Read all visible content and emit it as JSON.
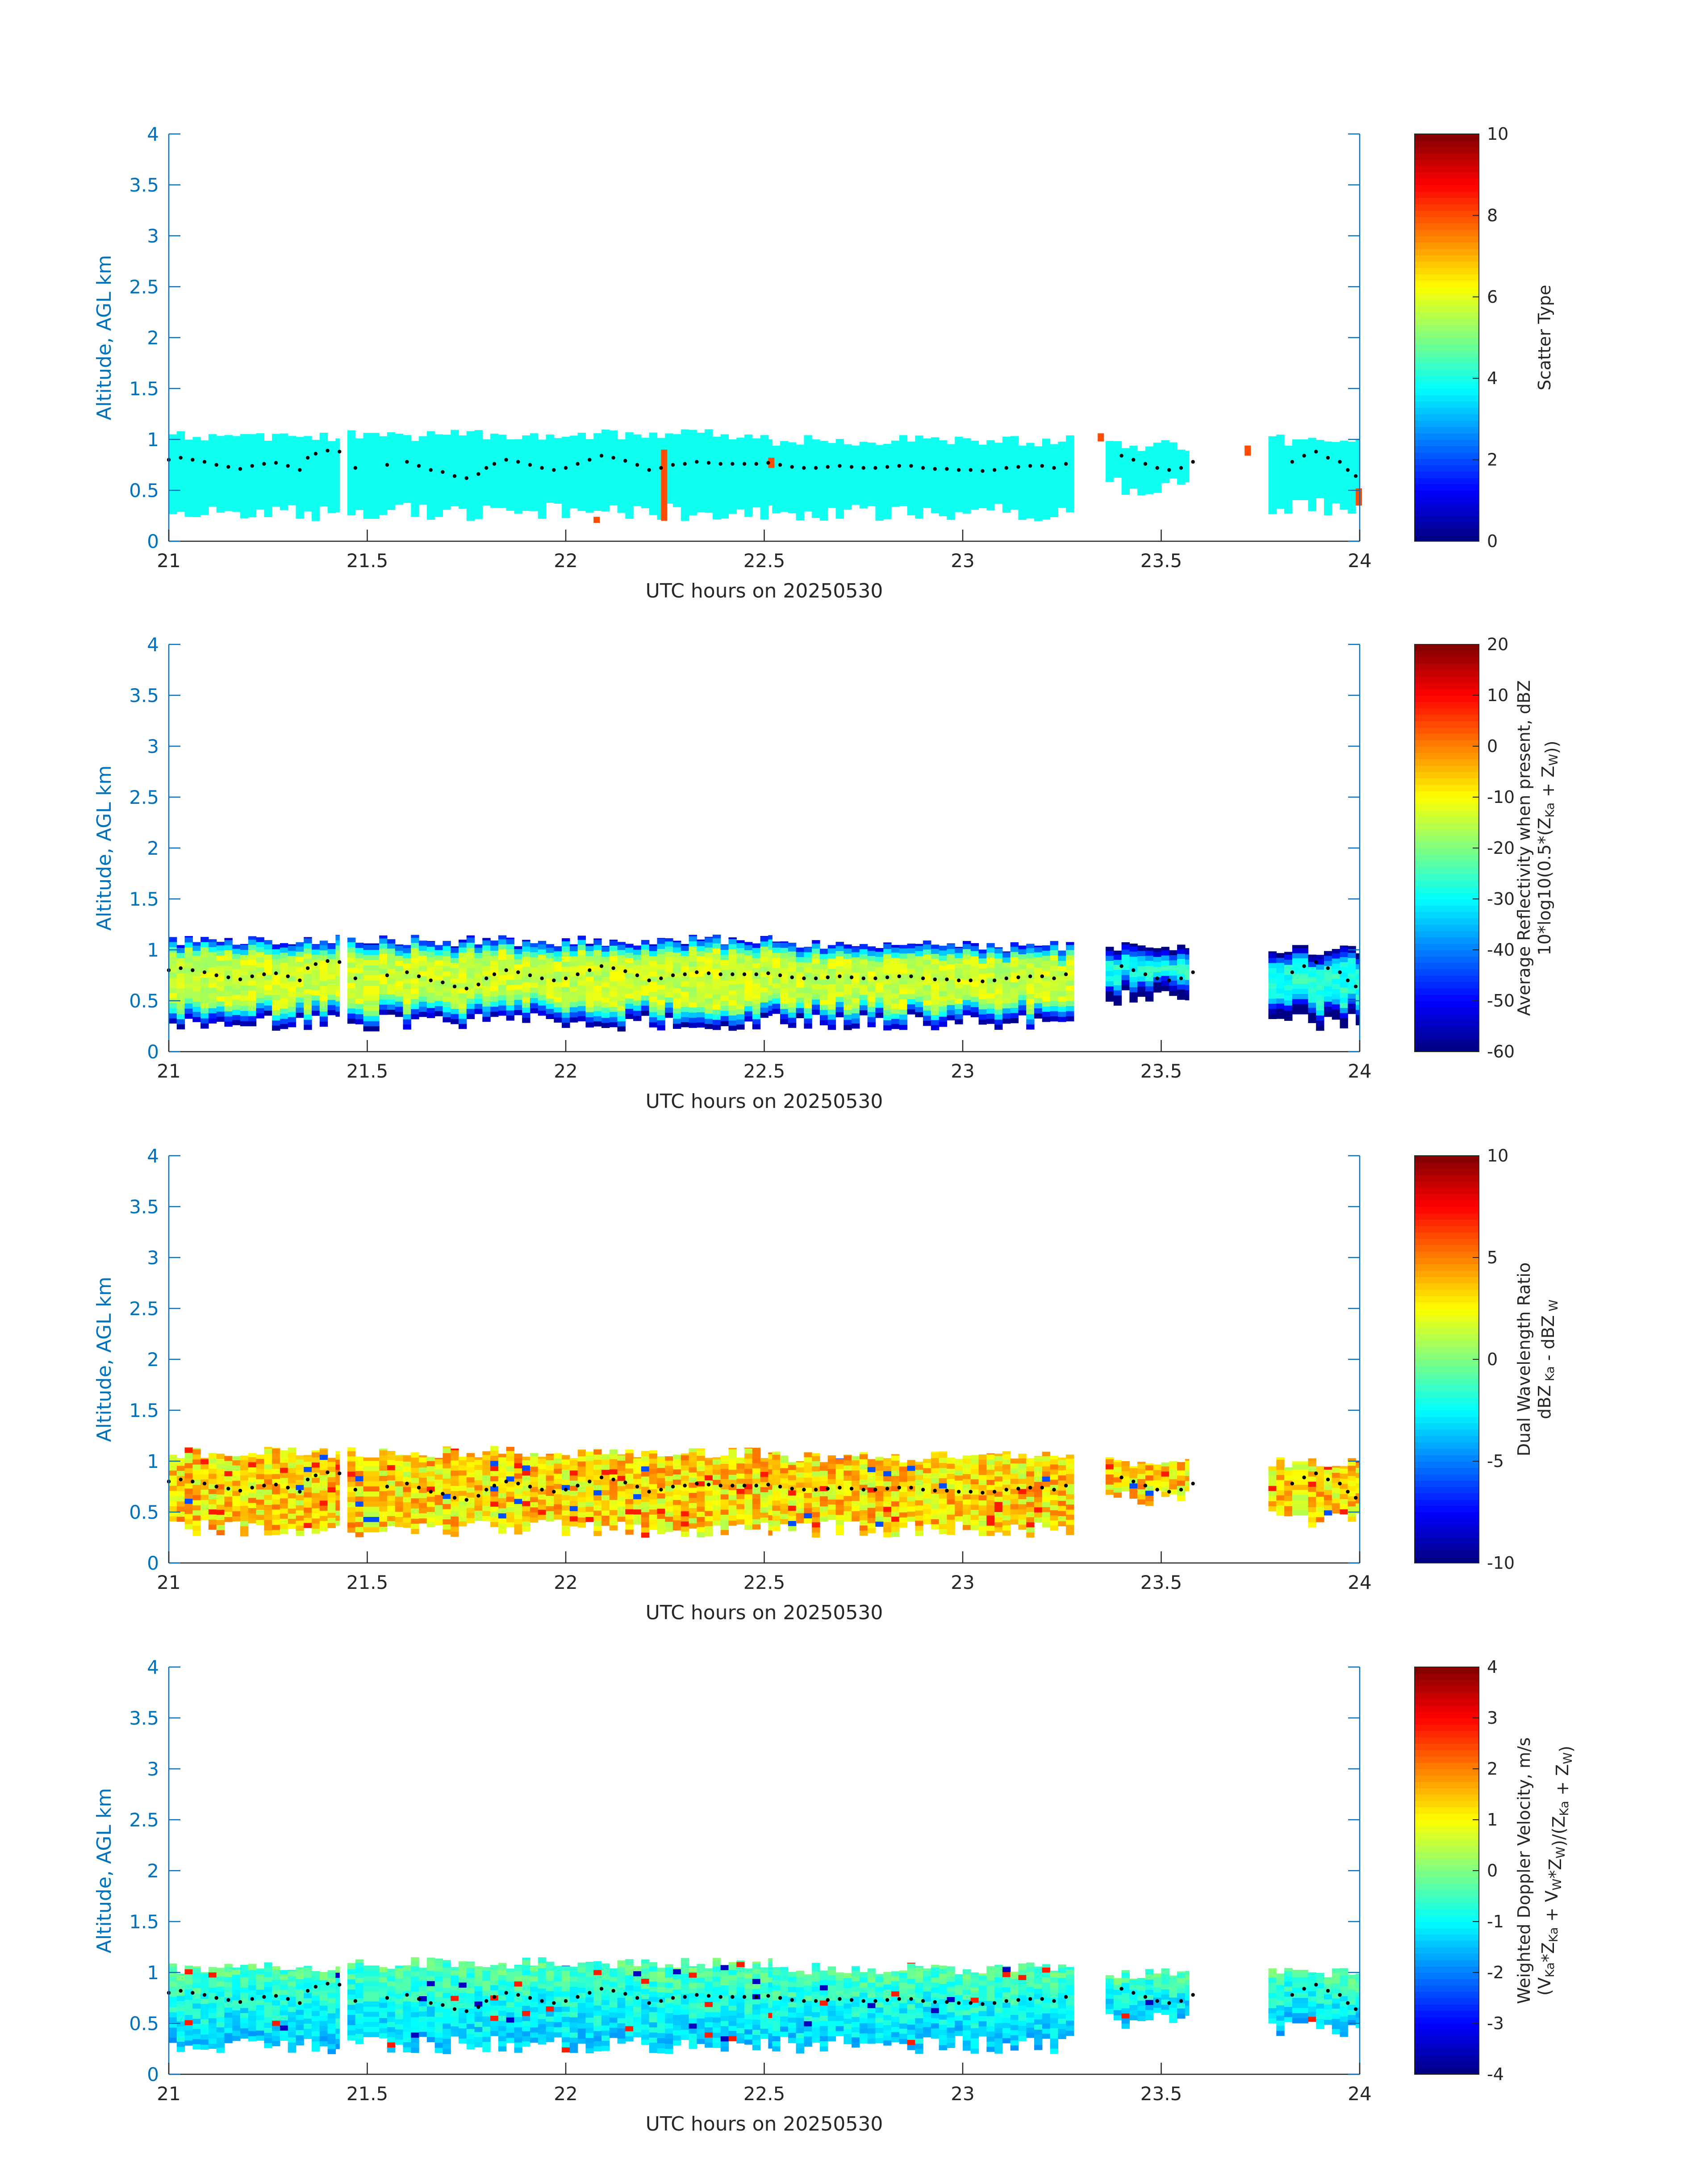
{
  "figure": {
    "colormap": "jet",
    "axis_color": "#0072BD",
    "background": "#ffffff",
    "marker_color": "#000000",
    "data_field_note": ""
  },
  "chart_data": [
    {
      "type": "heatmap",
      "panel": "scatter-type",
      "xlabel": "UTC hours on 20250530",
      "ylabel": "Altitude, AGL km",
      "xlim": [
        21,
        24
      ],
      "ylim": [
        0,
        4
      ],
      "xticks": [
        "21",
        "21.5",
        "22",
        "22.5",
        "23",
        "23.5",
        "24"
      ],
      "yticks": [
        "0",
        "0.5",
        "1",
        "1.5",
        "2",
        "2.5",
        "3",
        "3.5",
        "4"
      ],
      "grid": false,
      "colorbar": {
        "label_lines": [
          [
            {
              "t": "Scatter Type"
            }
          ]
        ],
        "clim": [
          0,
          10
        ],
        "ticks": [
          "0",
          "2",
          "4",
          "6",
          "8",
          "10"
        ]
      },
      "layer_segments": [
        {
          "t0": 21.0,
          "t1": 21.43,
          "bottom": 0.2,
          "top": 1.1
        },
        {
          "t0": 21.45,
          "t1": 22.52,
          "bottom": 0.2,
          "top": 1.1
        },
        {
          "t0": 22.52,
          "t1": 23.28,
          "bottom": 0.2,
          "top": 1.05
        },
        {
          "t0": 23.36,
          "t1": 23.57,
          "bottom": 0.45,
          "top": 1.0
        },
        {
          "t0": 23.77,
          "t1": 24.0,
          "bottom": 0.25,
          "top": 1.05
        }
      ],
      "dominant_value": 3.9,
      "anomalies": [
        {
          "t": 22.24,
          "z0": 0.2,
          "z1": 0.9,
          "value": 8.0
        },
        {
          "t": 22.51,
          "z0": 0.72,
          "z1": 0.82,
          "value": 8.0
        },
        {
          "t": 22.07,
          "z0": 0.18,
          "z1": 0.24,
          "value": 8.0
        },
        {
          "t": 23.34,
          "z0": 0.98,
          "z1": 1.06,
          "value": 8.0
        },
        {
          "t": 23.71,
          "z0": 0.84,
          "z1": 0.94,
          "value": 8.0
        },
        {
          "t": 23.99,
          "z0": 0.35,
          "z1": 0.52,
          "value": 8.0
        }
      ]
    },
    {
      "type": "heatmap",
      "panel": "average-reflectivity",
      "xlabel": "UTC hours on 20250530",
      "ylabel": "Altitude, AGL km",
      "xlim": [
        21,
        24
      ],
      "ylim": [
        0,
        4
      ],
      "xticks": [
        "21",
        "21.5",
        "22",
        "22.5",
        "23",
        "23.5",
        "24"
      ],
      "yticks": [
        "0",
        "0.5",
        "1",
        "1.5",
        "2",
        "2.5",
        "3",
        "3.5",
        "4"
      ],
      "grid": false,
      "colorbar": {
        "label_lines": [
          [
            {
              "t": "Average Reflectivity when present, dBZ"
            }
          ],
          [
            {
              "t": "10*log10(0.5*(Z"
            },
            {
              "t": "Ka",
              "sub": true
            },
            {
              "t": " + Z"
            },
            {
              "t": "W",
              "sub": true
            },
            {
              "t": "))"
            }
          ]
        ],
        "clim": [
          -60,
          20
        ],
        "ticks": [
          "-60",
          "-50",
          "-40",
          "-30",
          "-20",
          "-10",
          "0",
          "10",
          "20"
        ]
      },
      "layer_segments": [
        {
          "t0": 21.0,
          "t1": 21.43,
          "bottom": 0.2,
          "top": 1.15
        },
        {
          "t0": 21.45,
          "t1": 22.52,
          "bottom": 0.2,
          "top": 1.15
        },
        {
          "t0": 22.52,
          "t1": 23.28,
          "bottom": 0.2,
          "top": 1.1
        },
        {
          "t0": 23.36,
          "t1": 23.57,
          "bottom": 0.45,
          "top": 1.1
        },
        {
          "t0": 23.77,
          "t1": 24.0,
          "bottom": 0.2,
          "top": 1.05
        }
      ],
      "core_value": -14,
      "edge_value": -55,
      "noise": 8
    },
    {
      "type": "heatmap",
      "panel": "dual-wavelength-ratio",
      "xlabel": "UTC hours on 20250530",
      "ylabel": "Altitude, AGL km",
      "xlim": [
        21,
        24
      ],
      "ylim": [
        0,
        4
      ],
      "xticks": [
        "21",
        "21.5",
        "22",
        "22.5",
        "23",
        "23.5",
        "24"
      ],
      "yticks": [
        "0",
        "0.5",
        "1",
        "1.5",
        "2",
        "2.5",
        "3",
        "3.5",
        "4"
      ],
      "grid": false,
      "colorbar": {
        "label_lines": [
          [
            {
              "t": "Dual Wavelength Ratio"
            }
          ],
          [
            {
              "t": "dBZ"
            },
            {
              "t": " Ka",
              "sub": true
            },
            {
              "t": " - dBZ"
            },
            {
              "t": " W",
              "sub": true
            }
          ]
        ],
        "clim": [
          -10,
          10
        ],
        "ticks": [
          "-10",
          "-5",
          "0",
          "5",
          "10"
        ]
      },
      "layer_segments": [
        {
          "t0": 21.0,
          "t1": 21.43,
          "bottom": 0.25,
          "top": 1.15
        },
        {
          "t0": 21.45,
          "t1": 22.52,
          "bottom": 0.25,
          "top": 1.15
        },
        {
          "t0": 22.52,
          "t1": 23.28,
          "bottom": 0.25,
          "top": 1.1
        },
        {
          "t0": 23.36,
          "t1": 23.57,
          "bottom": 0.55,
          "top": 1.05
        },
        {
          "t0": 23.77,
          "t1": 24.0,
          "bottom": 0.35,
          "top": 1.05
        }
      ],
      "core_value": 3.2,
      "noise": 2.2
    },
    {
      "type": "heatmap",
      "panel": "weighted-doppler-velocity",
      "xlabel": "UTC hours on 20250530",
      "ylabel": "Altitude, AGL km",
      "xlim": [
        21,
        24
      ],
      "ylim": [
        0,
        4
      ],
      "xticks": [
        "21",
        "21.5",
        "22",
        "22.5",
        "23",
        "23.5",
        "24"
      ],
      "yticks": [
        "0",
        "0.5",
        "1",
        "1.5",
        "2",
        "2.5",
        "3",
        "3.5",
        "4"
      ],
      "grid": false,
      "colorbar": {
        "label_lines": [
          [
            {
              "t": "Weighted Doppler Velocity, m/s"
            }
          ],
          [
            {
              "t": "(V"
            },
            {
              "t": "Ka",
              "sub": true
            },
            {
              "t": "*Z"
            },
            {
              "t": "Ka",
              "sub": true
            },
            {
              "t": " + V"
            },
            {
              "t": "W",
              "sub": true
            },
            {
              "t": "*Z"
            },
            {
              "t": "W",
              "sub": true
            },
            {
              "t": ")/(Z"
            },
            {
              "t": "Ka",
              "sub": true
            },
            {
              "t": " + Z"
            },
            {
              "t": "W",
              "sub": true
            },
            {
              "t": ")"
            }
          ]
        ],
        "clim": [
          -4,
          4
        ],
        "ticks": [
          "-4",
          "-3",
          "-2",
          "-1",
          "0",
          "1",
          "2",
          "3",
          "4"
        ]
      },
      "layer_segments": [
        {
          "t0": 21.0,
          "t1": 21.43,
          "bottom": 0.2,
          "top": 1.1
        },
        {
          "t0": 21.45,
          "t1": 22.52,
          "bottom": 0.2,
          "top": 1.15
        },
        {
          "t0": 22.52,
          "t1": 23.28,
          "bottom": 0.2,
          "top": 1.1
        },
        {
          "t0": 23.36,
          "t1": 23.57,
          "bottom": 0.45,
          "top": 1.05
        },
        {
          "t0": 23.77,
          "t1": 24.0,
          "bottom": 0.35,
          "top": 1.05
        }
      ],
      "lower_value": -1.4,
      "upper_value": -0.3,
      "noise": 0.5
    }
  ],
  "marker_trace": {
    "style": "black dots",
    "points": [
      [
        21.0,
        0.8
      ],
      [
        21.03,
        0.82
      ],
      [
        21.06,
        0.8
      ],
      [
        21.09,
        0.78
      ],
      [
        21.12,
        0.75
      ],
      [
        21.15,
        0.73
      ],
      [
        21.18,
        0.71
      ],
      [
        21.21,
        0.74
      ],
      [
        21.24,
        0.76
      ],
      [
        21.27,
        0.77
      ],
      [
        21.3,
        0.74
      ],
      [
        21.33,
        0.7
      ],
      [
        21.35,
        0.82
      ],
      [
        21.37,
        0.86
      ],
      [
        21.4,
        0.89
      ],
      [
        21.43,
        0.88
      ],
      [
        21.47,
        0.72
      ],
      [
        21.55,
        0.75
      ],
      [
        21.6,
        0.78
      ],
      [
        21.63,
        0.74
      ],
      [
        21.66,
        0.7
      ],
      [
        21.69,
        0.68
      ],
      [
        21.72,
        0.64
      ],
      [
        21.75,
        0.62
      ],
      [
        21.78,
        0.66
      ],
      [
        21.8,
        0.72
      ],
      [
        21.82,
        0.76
      ],
      [
        21.85,
        0.8
      ],
      [
        21.88,
        0.78
      ],
      [
        21.91,
        0.75
      ],
      [
        21.94,
        0.72
      ],
      [
        21.97,
        0.7
      ],
      [
        22.0,
        0.72
      ],
      [
        22.03,
        0.76
      ],
      [
        22.06,
        0.8
      ],
      [
        22.09,
        0.84
      ],
      [
        22.12,
        0.82
      ],
      [
        22.15,
        0.79
      ],
      [
        22.18,
        0.75
      ],
      [
        22.21,
        0.7
      ],
      [
        22.24,
        0.72
      ],
      [
        22.27,
        0.75
      ],
      [
        22.3,
        0.76
      ],
      [
        22.33,
        0.78
      ],
      [
        22.36,
        0.77
      ],
      [
        22.39,
        0.76
      ],
      [
        22.42,
        0.76
      ],
      [
        22.45,
        0.76
      ],
      [
        22.48,
        0.76
      ],
      [
        22.51,
        0.77
      ],
      [
        22.54,
        0.75
      ],
      [
        22.57,
        0.73
      ],
      [
        22.6,
        0.72
      ],
      [
        22.63,
        0.72
      ],
      [
        22.66,
        0.73
      ],
      [
        22.69,
        0.74
      ],
      [
        22.72,
        0.73
      ],
      [
        22.75,
        0.72
      ],
      [
        22.78,
        0.72
      ],
      [
        22.81,
        0.73
      ],
      [
        22.84,
        0.74
      ],
      [
        22.87,
        0.74
      ],
      [
        22.9,
        0.72
      ],
      [
        22.93,
        0.71
      ],
      [
        22.96,
        0.71
      ],
      [
        22.99,
        0.7
      ],
      [
        23.02,
        0.7
      ],
      [
        23.05,
        0.69
      ],
      [
        23.08,
        0.7
      ],
      [
        23.11,
        0.72
      ],
      [
        23.14,
        0.73
      ],
      [
        23.17,
        0.74
      ],
      [
        23.2,
        0.74
      ],
      [
        23.23,
        0.72
      ],
      [
        23.26,
        0.76
      ],
      [
        23.4,
        0.84
      ],
      [
        23.43,
        0.8
      ],
      [
        23.46,
        0.76
      ],
      [
        23.49,
        0.72
      ],
      [
        23.52,
        0.7
      ],
      [
        23.55,
        0.72
      ],
      [
        23.58,
        0.78
      ],
      [
        23.83,
        0.78
      ],
      [
        23.86,
        0.84
      ],
      [
        23.89,
        0.88
      ],
      [
        23.92,
        0.82
      ],
      [
        23.95,
        0.78
      ],
      [
        23.97,
        0.7
      ],
      [
        23.99,
        0.64
      ]
    ]
  }
}
